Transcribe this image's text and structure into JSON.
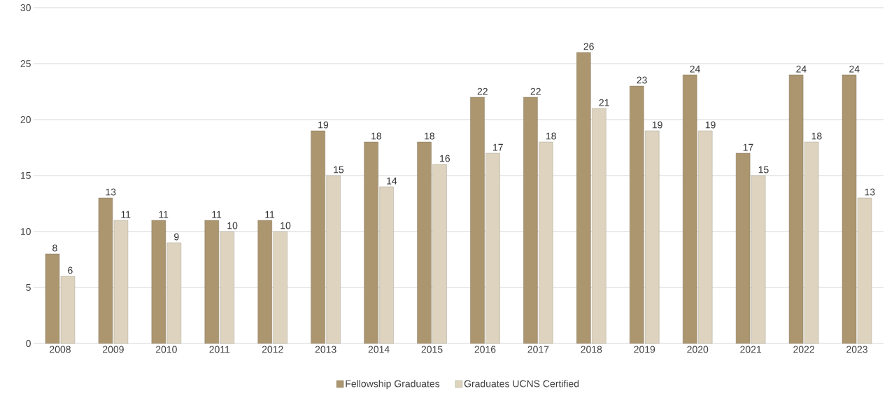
{
  "chart_data": {
    "type": "bar",
    "categories": [
      "2008",
      "2009",
      "2010",
      "2011",
      "2012",
      "2013",
      "2014",
      "2015",
      "2016",
      "2017",
      "2018",
      "2019",
      "2020",
      "2021",
      "2022",
      "2023"
    ],
    "series": [
      {
        "name": "Fellowship Graduates",
        "color": "#ab9670",
        "values": [
          8,
          13,
          11,
          11,
          11,
          19,
          18,
          18,
          22,
          22,
          26,
          23,
          24,
          17,
          24,
          24
        ]
      },
      {
        "name": "Graduates UCNS Certified",
        "color": "#ddd3bf",
        "values": [
          6,
          11,
          9,
          10,
          10,
          15,
          14,
          16,
          17,
          18,
          21,
          19,
          19,
          15,
          18,
          13
        ]
      }
    ],
    "ylim": [
      0,
      30
    ],
    "yticks": [
      0,
      5,
      10,
      15,
      20,
      25,
      30
    ],
    "grid": "y",
    "legend": "bottom",
    "data_labels": true
  }
}
